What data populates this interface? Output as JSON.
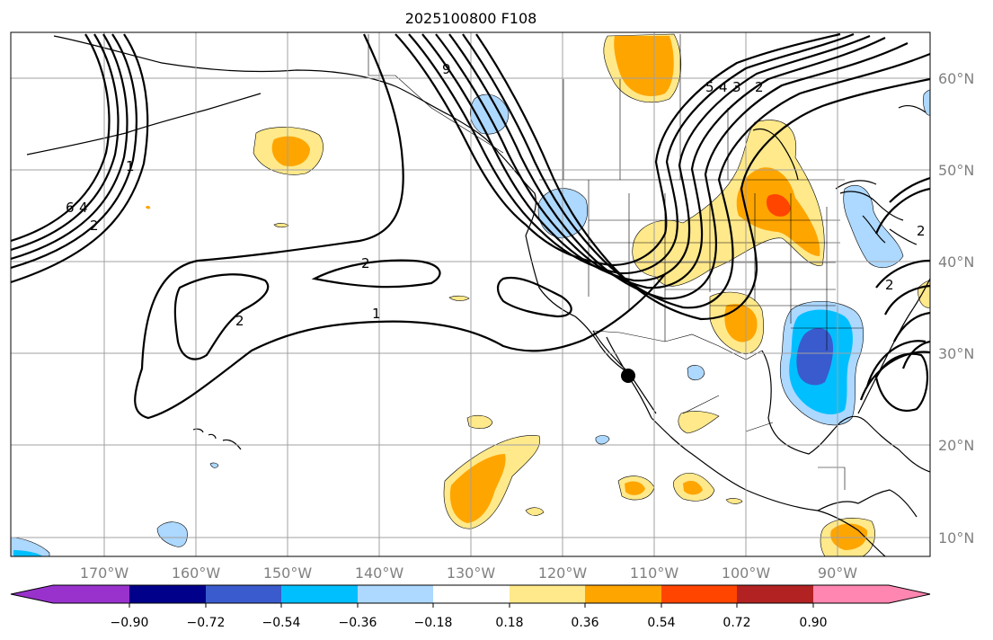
{
  "title": "2025100800 F108",
  "longitude_labels": [
    "170°W",
    "160°W",
    "150°W",
    "140°W",
    "130°W",
    "120°W",
    "110°W",
    "100°W",
    "90°W"
  ],
  "latitude_labels": [
    "60°N",
    "50°N",
    "40°N",
    "30°N",
    "20°N",
    "10°N"
  ],
  "colorbar": {
    "ticks": [
      "−0.90",
      "−0.72",
      "−0.54",
      "−0.36",
      "−0.18",
      "0.18",
      "0.36",
      "0.54",
      "0.72",
      "0.90"
    ],
    "colors": [
      "#9932cc",
      "#00008b",
      "#3a5bcd",
      "#00bfff",
      "#add8ff",
      "#ffffff",
      "#ffe98a",
      "#ffa500",
      "#ff4500",
      "#b22222",
      "#ff86b0"
    ]
  },
  "contour_labels": [
    "6",
    "4",
    "2",
    "1",
    "2",
    "2",
    "1",
    "9",
    "5",
    "4",
    "3",
    "2",
    "2",
    "2"
  ],
  "marker": "black-dot"
}
